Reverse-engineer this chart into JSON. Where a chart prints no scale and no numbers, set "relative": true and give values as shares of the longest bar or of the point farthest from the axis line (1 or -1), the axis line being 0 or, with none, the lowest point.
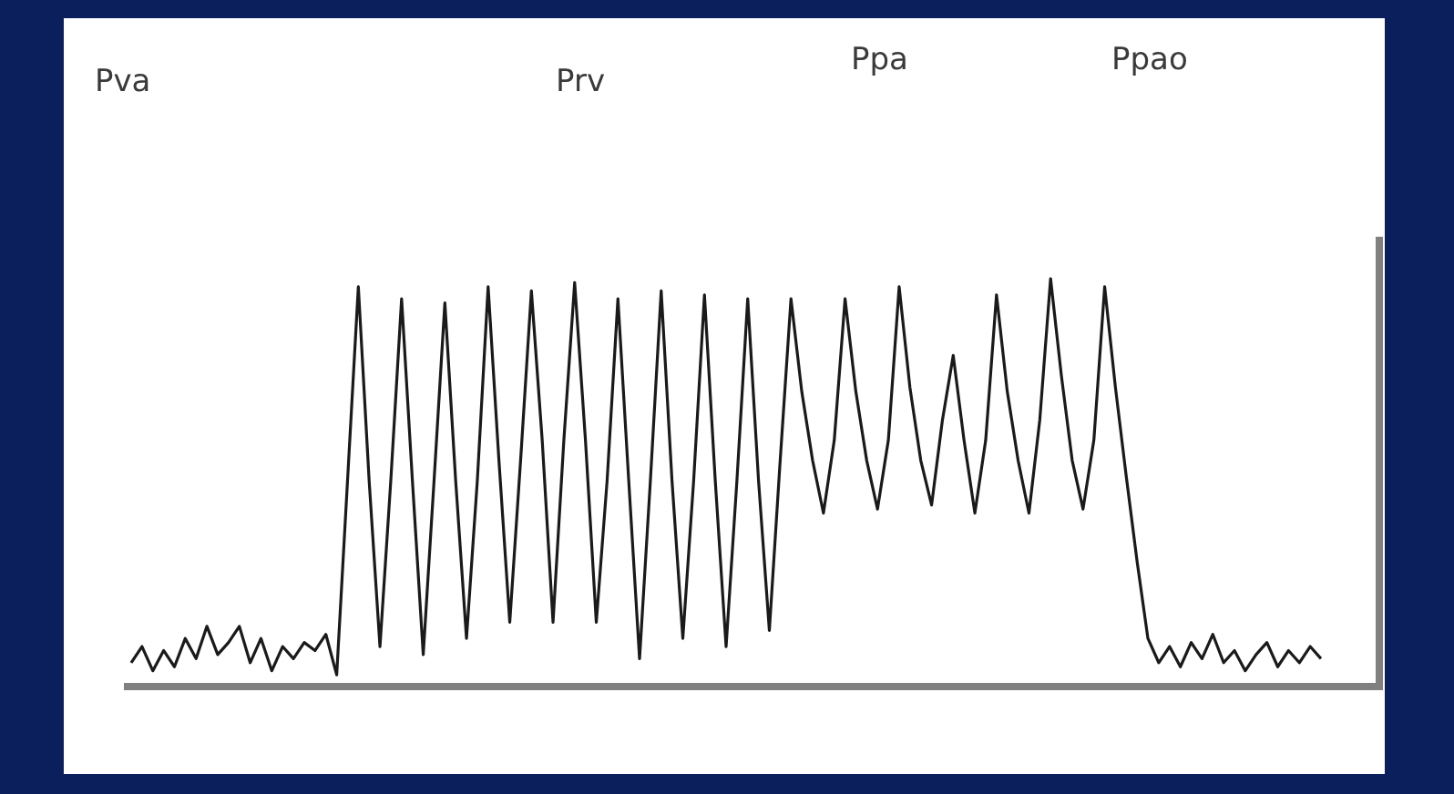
{
  "chart_data": {
    "type": "line",
    "relative": true,
    "color": "#1a1a1a",
    "annotations": [
      "Pva",
      "Prv",
      "Ppa",
      "Ppao"
    ],
    "categories": [
      null,
      null,
      null,
      null,
      null,
      null,
      null,
      null,
      null,
      null,
      null,
      null,
      null,
      null,
      null,
      null,
      null,
      null,
      null,
      null,
      null,
      null,
      null,
      null,
      null,
      null,
      null,
      null,
      null,
      null,
      null,
      null,
      null,
      null,
      null,
      null,
      null,
      null,
      null,
      null,
      null,
      null,
      null,
      null,
      null,
      null,
      null,
      null,
      null,
      null,
      null,
      null,
      null,
      null,
      null,
      null,
      null,
      null,
      null,
      null,
      null,
      null,
      null,
      null,
      null,
      null,
      null,
      null,
      null,
      null,
      null,
      null,
      null,
      null,
      null,
      null,
      null,
      null,
      null,
      null,
      null,
      null,
      null,
      null,
      null,
      null,
      null,
      null,
      null,
      null,
      null,
      null,
      null,
      null,
      null,
      null,
      null,
      null,
      null,
      null,
      null,
      null,
      null,
      null,
      null,
      null,
      null,
      null,
      null,
      null,
      null
    ],
    "values": [
      0.05,
      0.09,
      0.03,
      0.08,
      0.04,
      0.11,
      0.06,
      0.14,
      0.07,
      0.1,
      0.14,
      0.05,
      0.11,
      0.03,
      0.09,
      0.06,
      0.1,
      0.08,
      0.12,
      0.02,
      0.5,
      0.98,
      0.5,
      0.09,
      0.5,
      0.95,
      0.5,
      0.07,
      0.5,
      0.94,
      0.5,
      0.11,
      0.5,
      0.98,
      0.55,
      0.15,
      0.55,
      0.97,
      0.6,
      0.15,
      0.6,
      0.99,
      0.6,
      0.15,
      0.5,
      0.95,
      0.5,
      0.06,
      0.5,
      0.97,
      0.5,
      0.11,
      0.5,
      0.96,
      0.5,
      0.09,
      0.5,
      0.95,
      0.5,
      0.13,
      0.55,
      0.95,
      0.72,
      0.55,
      0.42,
      0.6,
      0.95,
      0.72,
      0.55,
      0.43,
      0.6,
      0.98,
      0.73,
      0.55,
      0.44,
      0.65,
      0.81,
      0.6,
      0.42,
      0.6,
      0.96,
      0.72,
      0.55,
      0.42,
      0.65,
      1.0,
      0.76,
      0.55,
      0.43,
      0.6,
      0.98,
      0.73,
      0.51,
      0.3,
      0.11,
      0.05,
      0.09,
      0.04,
      0.1,
      0.06,
      0.12,
      0.05,
      0.08,
      0.03,
      0.07,
      0.1,
      0.04,
      0.08,
      0.05,
      0.09,
      0.06
    ]
  }
}
